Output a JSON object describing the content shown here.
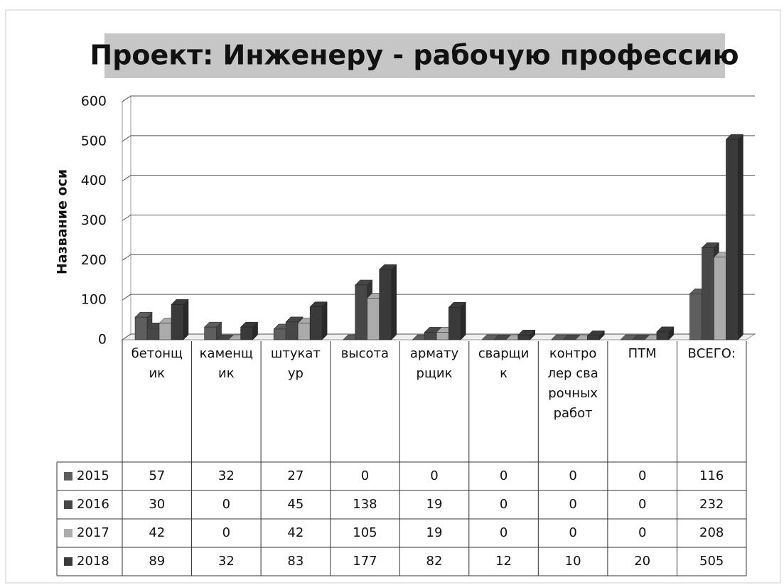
{
  "chart_data": {
    "type": "bar",
    "title": "Проект: Инженеру - рабочую профессию",
    "ylabel": "Название оси",
    "categories": [
      "бетонщик",
      "каменщик",
      "штукатур",
      "высота",
      "арматурщик",
      "сварщик",
      "контролер сварочных работ",
      "ПТМ",
      "ВСЕГО:"
    ],
    "series": [
      {
        "name": "2015",
        "color": "#5e5e5e",
        "values": [
          57,
          32,
          27,
          0,
          0,
          0,
          0,
          0,
          116
        ]
      },
      {
        "name": "2016",
        "color": "#474747",
        "values": [
          30,
          0,
          45,
          138,
          19,
          0,
          0,
          0,
          232
        ]
      },
      {
        "name": "2017",
        "color": "#ababab",
        "values": [
          42,
          0,
          42,
          105,
          19,
          0,
          0,
          0,
          208
        ]
      },
      {
        "name": "2018",
        "color": "#3a3a3a",
        "values": [
          89,
          32,
          83,
          177,
          82,
          12,
          10,
          20,
          505
        ]
      }
    ],
    "ylim": [
      0,
      600
    ],
    "yticks": [
      0,
      100,
      200,
      300,
      400,
      500,
      600
    ],
    "grid": true
  }
}
